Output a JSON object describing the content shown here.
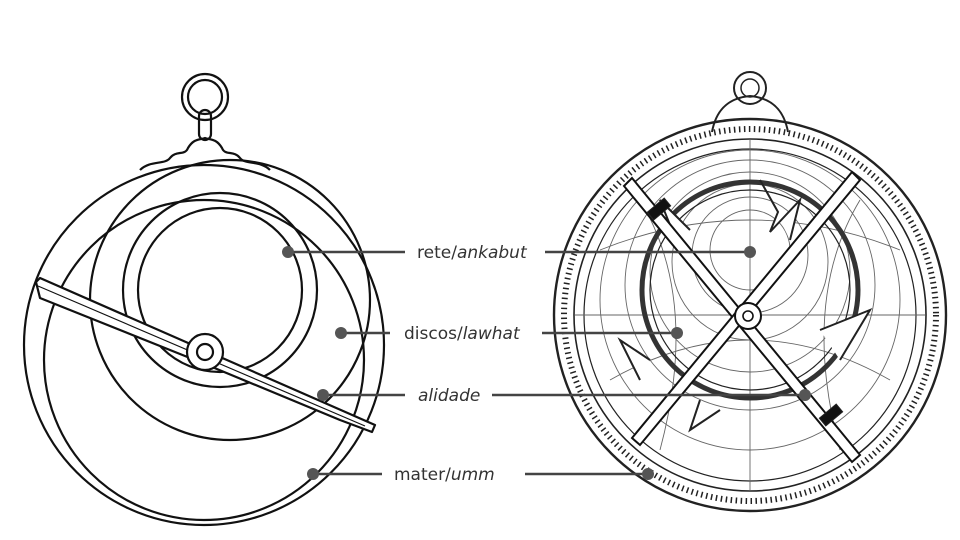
{
  "labels": [
    {
      "id": "rete",
      "plain": "rete/",
      "italic": "ankabut"
    },
    {
      "id": "discos",
      "plain": "discos/",
      "italic": "lawhat"
    },
    {
      "id": "alidade",
      "plain": "",
      "italic": "alidade"
    },
    {
      "id": "mater",
      "plain": "mater/",
      "italic": "umm"
    }
  ],
  "colors": {
    "line": "#444444",
    "dot": "#555555",
    "drawing": "#111111",
    "text": "#333333"
  }
}
